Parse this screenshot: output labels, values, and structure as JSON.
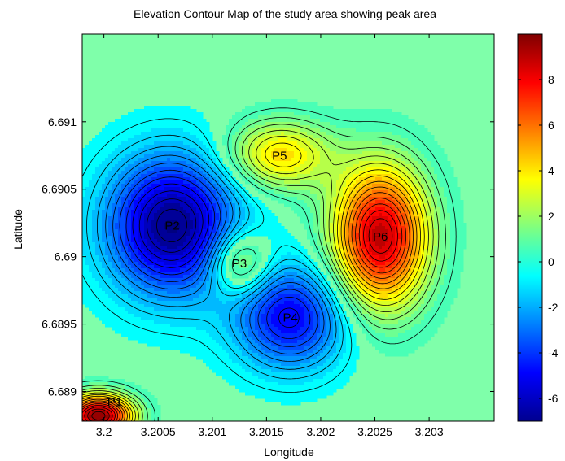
{
  "chart_data": {
    "type": "contour",
    "title": "Elevation Contour Map of the study area showing peak area",
    "xlabel": "Longitude",
    "ylabel": "Latitude",
    "xlim": [
      3.1998,
      3.2036
    ],
    "ylim": [
      6.68878,
      6.69165
    ],
    "x_ticks": [
      {
        "value": 3.2,
        "label": "3.2"
      },
      {
        "value": 3.2005,
        "label": "3.2005"
      },
      {
        "value": 3.201,
        "label": "3.201"
      },
      {
        "value": 3.2015,
        "label": "3.2015"
      },
      {
        "value": 3.202,
        "label": "3.202"
      },
      {
        "value": 3.2025,
        "label": "3.2025"
      },
      {
        "value": 3.203,
        "label": "3.203"
      }
    ],
    "y_ticks": [
      {
        "value": 6.689,
        "label": "6.689"
      },
      {
        "value": 6.6895,
        "label": "6.6895"
      },
      {
        "value": 6.69,
        "label": "6.69"
      },
      {
        "value": 6.6905,
        "label": "6.6905"
      },
      {
        "value": 6.691,
        "label": "6.691"
      }
    ],
    "colorbar": {
      "range": [
        -7,
        10
      ],
      "ticks": [
        {
          "value": 8,
          "label": "8"
        },
        {
          "value": 6,
          "label": "6"
        },
        {
          "value": 4,
          "label": "4"
        },
        {
          "value": 2,
          "label": "2"
        },
        {
          "value": 0,
          "label": "0"
        },
        {
          "value": -2,
          "label": "-2"
        },
        {
          "value": -4,
          "label": "-4"
        },
        {
          "value": -6,
          "label": "-6"
        }
      ],
      "colormap": "jet"
    },
    "background_value": 0,
    "peaks": [
      {
        "label": "P1",
        "x": 3.19995,
        "y": 6.68882,
        "value": 10,
        "sx": 0.00022,
        "sy": 0.00011
      },
      {
        "label": "P2",
        "x": 3.20063,
        "y": 6.69023,
        "value": -7,
        "sx": 0.00042,
        "sy": 0.00036
      },
      {
        "label": "P3",
        "x": 3.20125,
        "y": 6.68995,
        "value": 3.5,
        "sx": 0.0002,
        "sy": 0.00017
      },
      {
        "label": "P4",
        "x": 3.20172,
        "y": 6.68955,
        "value": -5,
        "sx": 0.00036,
        "sy": 0.00027
      },
      {
        "label": "P5",
        "x": 3.20162,
        "y": 6.69075,
        "value": 4.2,
        "sx": 0.00034,
        "sy": 0.00018
      },
      {
        "label": "P6",
        "x": 3.20255,
        "y": 6.69015,
        "value": 9,
        "sx": 0.0003,
        "sy": 0.00036
      }
    ]
  }
}
